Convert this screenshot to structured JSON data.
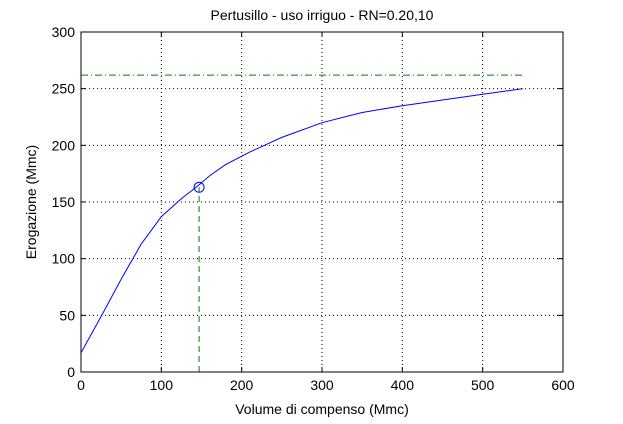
{
  "chart_data": {
    "type": "line",
    "title": "Pertusillo  -  uso irriguo  -   RN=0.20,10",
    "xlabel": "Volume di compenso (Mmc)",
    "ylabel": "Erogazione (Mmc)",
    "xlim": [
      0,
      600
    ],
    "ylim": [
      0,
      300
    ],
    "xticks": [
      0,
      100,
      200,
      300,
      400,
      500,
      600
    ],
    "yticks": [
      0,
      50,
      100,
      150,
      200,
      250,
      300
    ],
    "xtick_labels": [
      "0",
      "100",
      "200",
      "300",
      "400",
      "500",
      "600"
    ],
    "ytick_labels": [
      "0",
      "50",
      "100",
      "150",
      "200",
      "250",
      "300"
    ],
    "grid": true,
    "series": [
      {
        "color": "#0000ff",
        "style": "solid",
        "x": [
          0,
          25,
          50,
          75,
          100,
          125,
          145,
          160,
          180,
          210,
          250,
          300,
          350,
          400,
          450,
          500,
          550
        ],
        "y": [
          17,
          49,
          82,
          113,
          137,
          153,
          164,
          173,
          183,
          194,
          207,
          220,
          229,
          235,
          240,
          245,
          250
        ]
      }
    ],
    "reference_lines": [
      {
        "orientation": "horizontal",
        "value": 262,
        "from": 0,
        "to": 550,
        "color": "#008000",
        "style": "dashdot"
      },
      {
        "orientation": "vertical",
        "value": 147,
        "from": 0,
        "to": 163,
        "color": "#008000",
        "style": "dashed"
      }
    ],
    "marker": {
      "x": 147,
      "y": 163,
      "shape": "circle",
      "color": "#0000ff"
    }
  }
}
